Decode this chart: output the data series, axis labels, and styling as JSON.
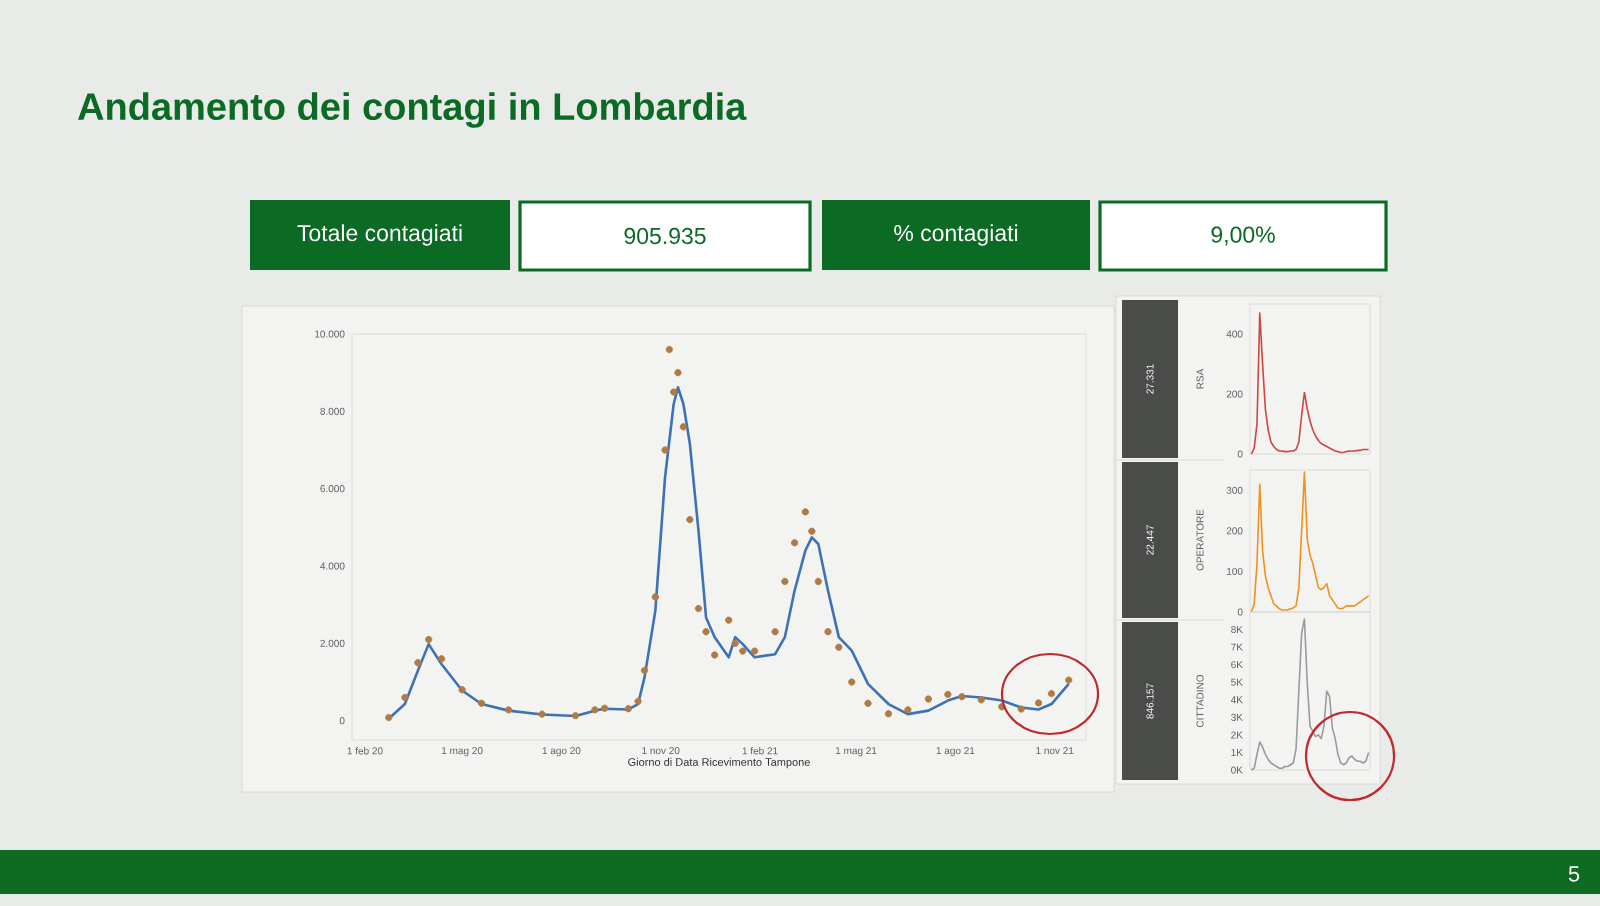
{
  "chart_data": [
    {
      "type": "other",
      "title": "Andamento dei contagi in Lombardia",
      "annotations": [
        "Totale contagiati",
        "905.935",
        "% contagiati",
        "9,00%",
        "5"
      ]
    },
    {
      "type": "line",
      "xlabel": "Giorno di Data Ricevimento Tampone",
      "xlim": [
        "2020-01-20",
        "2021-11-30"
      ],
      "ylim": [
        -500,
        10000
      ],
      "xticks": [
        {
          "value": "2020-02-01",
          "label": "1 feb 20"
        },
        {
          "value": "2020-05-01",
          "label": "1 mag 20"
        },
        {
          "value": "2020-08-01",
          "label": "1 ago 20"
        },
        {
          "value": "2020-11-01",
          "label": "1 nov 20"
        },
        {
          "value": "2021-02-01",
          "label": "1 feb 21"
        },
        {
          "value": "2021-05-01",
          "label": "1 mag 21"
        },
        {
          "value": "2021-08-01",
          "label": "1 ago 21"
        },
        {
          "value": "2021-11-01",
          "label": "1 nov 21"
        }
      ],
      "yticks": [
        0,
        {
          "value": 2000,
          "label": "2.000"
        },
        {
          "value": 4000,
          "label": "4.000"
        },
        {
          "value": 6000,
          "label": "6.000"
        },
        {
          "value": 8000,
          "label": "8.000"
        },
        {
          "value": 10000,
          "label": "10.000"
        }
      ],
      "series": [
        {
          "type": "scatter",
          "color": "#b07a45",
          "x": [
            "2020-02-23",
            "2020-03-09",
            "2020-03-21",
            "2020-03-31",
            "2020-04-12",
            "2020-05-01",
            "2020-05-19",
            "2020-06-13",
            "2020-07-14",
            "2020-08-14",
            "2020-09-01",
            "2020-09-10",
            "2020-10-02",
            "2020-10-11",
            "2020-10-17",
            "2020-10-27",
            "2020-11-05",
            "2020-11-09",
            "2020-11-13",
            "2020-11-17",
            "2020-11-22",
            "2020-11-28",
            "2020-12-06",
            "2020-12-13",
            "2020-12-21",
            "2021-01-03",
            "2021-01-09",
            "2021-01-16",
            "2021-01-27",
            "2021-02-15",
            "2021-02-24",
            "2021-03-05",
            "2021-03-15",
            "2021-03-21",
            "2021-03-27",
            "2021-04-05",
            "2021-04-15",
            "2021-04-27",
            "2021-05-12",
            "2021-05-31",
            "2021-06-18",
            "2021-07-07",
            "2021-07-25",
            "2021-08-07",
            "2021-08-25",
            "2021-09-13",
            "2021-10-01",
            "2021-10-17",
            "2021-10-29",
            "2021-11-14"
          ],
          "values": [
            80,
            600,
            1500,
            2100,
            1600,
            800,
            450,
            280,
            170,
            130,
            280,
            320,
            310,
            500,
            1300,
            3200,
            7000,
            9600,
            8500,
            9000,
            7600,
            5200,
            2900,
            2300,
            1700,
            2600,
            2000,
            1800,
            1800,
            2300,
            3600,
            4600,
            5400,
            4900,
            3600,
            2300,
            1900,
            1000,
            450,
            180,
            280,
            560,
            680,
            620,
            540,
            360,
            300,
            460,
            700,
            1050
          ]
        },
        {
          "color": "#3d72b4",
          "x": [
            "2020-02-23",
            "2020-03-09",
            "2020-03-21",
            "2020-03-31",
            "2020-04-12",
            "2020-05-01",
            "2020-05-19",
            "2020-06-13",
            "2020-07-14",
            "2020-08-14",
            "2020-09-01",
            "2020-09-10",
            "2020-10-02",
            "2020-10-11",
            "2020-10-17",
            "2020-10-27",
            "2020-11-05",
            "2020-11-13",
            "2020-11-17",
            "2020-11-22",
            "2020-11-28",
            "2020-12-06",
            "2020-12-13",
            "2020-12-21",
            "2021-01-03",
            "2021-01-09",
            "2021-01-16",
            "2021-01-27",
            "2021-02-15",
            "2021-02-24",
            "2021-03-05",
            "2021-03-15",
            "2021-03-21",
            "2021-03-27",
            "2021-04-05",
            "2021-04-15",
            "2021-04-27",
            "2021-05-12",
            "2021-05-31",
            "2021-06-18",
            "2021-07-07",
            "2021-07-25",
            "2021-08-07",
            "2021-08-25",
            "2021-09-13",
            "2021-10-01",
            "2021-10-17",
            "2021-10-29",
            "2021-11-14"
          ],
          "values": [
            50,
            430,
            1290,
            1980,
            1460,
            780,
            430,
            260,
            160,
            120,
            260,
            310,
            290,
            430,
            1120,
            2840,
            6290,
            8190,
            8620,
            8190,
            7160,
            4910,
            2670,
            2160,
            1640,
            2160,
            1980,
            1640,
            1720,
            2160,
            3360,
            4400,
            4740,
            4570,
            3360,
            2160,
            1810,
            950,
            430,
            170,
            260,
            520,
            640,
            600,
            520,
            340,
            290,
            430,
            950
          ]
        }
      ]
    },
    {
      "type": "line",
      "ylabel": "RSA",
      "annotations": [
        "27.331"
      ],
      "tick_labels": "y",
      "ylim": [
        0,
        500
      ],
      "yticks": [
        0,
        200,
        400
      ],
      "categories": [
        null,
        null,
        null,
        null,
        null,
        null,
        null,
        null,
        null,
        null,
        null,
        null,
        null,
        null,
        null,
        null,
        null,
        null,
        null,
        null,
        null,
        null,
        null,
        null,
        null,
        null,
        null,
        null,
        null,
        null,
        null,
        null,
        null,
        null,
        null,
        null,
        null,
        null,
        null,
        null,
        null,
        null,
        null
      ],
      "series": [
        {
          "color": "#d0453f",
          "values": [
            0,
            20,
            100,
            470,
            300,
            150,
            80,
            40,
            25,
            15,
            10,
            10,
            8,
            8,
            10,
            10,
            15,
            40,
            130,
            205,
            150,
            110,
            80,
            60,
            45,
            35,
            30,
            25,
            20,
            15,
            10,
            8,
            5,
            5,
            8,
            10,
            10,
            10,
            12,
            12,
            15,
            15,
            15
          ]
        }
      ]
    },
    {
      "type": "line",
      "ylabel": "OPERATORE",
      "annotations": [
        "22.447"
      ],
      "tick_labels": "y",
      "ylim": [
        0,
        350
      ],
      "yticks": [
        0,
        100,
        200,
        300
      ],
      "categories": [
        null,
        null,
        null,
        null,
        null,
        null,
        null,
        null,
        null,
        null,
        null,
        null,
        null,
        null,
        null,
        null,
        null,
        null,
        null,
        null,
        null,
        null,
        null,
        null,
        null,
        null,
        null,
        null,
        null,
        null,
        null,
        null,
        null,
        null,
        null,
        null,
        null,
        null,
        null,
        null,
        null,
        null,
        null
      ],
      "series": [
        {
          "color": "#f0901e",
          "values": [
            0,
            20,
            120,
            315,
            150,
            90,
            60,
            40,
            20,
            15,
            8,
            5,
            5,
            5,
            8,
            10,
            15,
            60,
            200,
            345,
            180,
            140,
            120,
            90,
            60,
            55,
            60,
            70,
            40,
            30,
            20,
            10,
            8,
            10,
            15,
            15,
            15,
            15,
            20,
            25,
            30,
            35,
            40
          ]
        }
      ]
    },
    {
      "type": "line",
      "ylabel": "CITTADINO",
      "annotations": [
        "846.157"
      ],
      "tick_labels": "y",
      "ylim": [
        0,
        9000
      ],
      "yticks": [
        {
          "value": 0,
          "label": "0K"
        },
        {
          "value": 1000,
          "label": "1K"
        },
        {
          "value": 2000,
          "label": "2K"
        },
        {
          "value": 3000,
          "label": "3K"
        },
        {
          "value": 4000,
          "label": "4K"
        },
        {
          "value": 5000,
          "label": "5K"
        },
        {
          "value": 6000,
          "label": "6K"
        },
        {
          "value": 7000,
          "label": "7K"
        },
        {
          "value": 8000,
          "label": "8K"
        }
      ],
      "categories": [
        null,
        null,
        null,
        null,
        null,
        null,
        null,
        null,
        null,
        null,
        null,
        null,
        null,
        null,
        null,
        null,
        null,
        null,
        null,
        null,
        null,
        null,
        null,
        null,
        null,
        null,
        null,
        null,
        null,
        null,
        null,
        null,
        null,
        null,
        null,
        null,
        null,
        null,
        null,
        null,
        null,
        null,
        null
      ],
      "series": [
        {
          "color": "#9a9a9a",
          "values": [
            0,
            100,
            900,
            1600,
            1300,
            900,
            600,
            400,
            300,
            200,
            100,
            100,
            200,
            200,
            300,
            400,
            1200,
            4500,
            7800,
            8600,
            5000,
            2500,
            2200,
            1900,
            2000,
            1800,
            2500,
            4500,
            4200,
            2400,
            1800,
            900,
            400,
            300,
            400,
            700,
            800,
            600,
            500,
            500,
            400,
            500,
            1000
          ]
        }
      ]
    }
  ]
}
